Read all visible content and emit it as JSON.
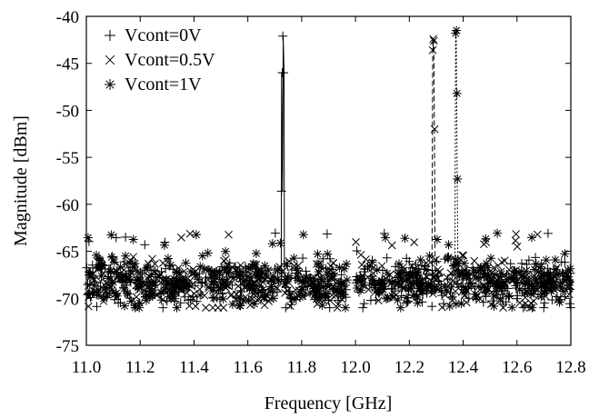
{
  "chart_data": {
    "type": "line",
    "title": "",
    "xlabel": "Frequency [GHz]",
    "ylabel": "Magnitude [dBm]",
    "xlim": [
      11.0,
      12.8
    ],
    "ylim": [
      -75,
      -40
    ],
    "x_ticks": [
      11.0,
      11.2,
      11.4,
      11.6,
      11.8,
      12.0,
      12.2,
      12.4,
      12.6,
      12.8
    ],
    "x_tick_labels": [
      "11.0",
      "11.2",
      "11.4",
      "11.6",
      "11.8",
      "12.0",
      "12.2",
      "12.4",
      "12.6",
      "12.8"
    ],
    "y_ticks": [
      -40,
      -45,
      -50,
      -55,
      -60,
      -65,
      -70,
      -75
    ],
    "y_tick_labels": [
      "-40",
      "-45",
      "-50",
      "-55",
      "-60",
      "-65",
      "-70",
      "-75"
    ],
    "grid": false,
    "legend_position": "top-left",
    "noise_floor": {
      "mean": -68.3,
      "spread_low": -71.0,
      "spread_high": -64.5,
      "gap": [
        11.97,
        12.0
      ]
    },
    "series": [
      {
        "name": "Vcont=0V",
        "marker": "plus",
        "line": "solid",
        "peak_x": 11.73,
        "peak_points": [
          [
            11.725,
            -58.6
          ],
          [
            11.728,
            -46.0
          ],
          [
            11.73,
            -42.1
          ],
          [
            11.733,
            -46.0
          ]
        ]
      },
      {
        "name": "Vcont=0.5V",
        "marker": "cross",
        "line": "dashed",
        "peak_x": 12.29,
        "peak_points": [
          [
            12.287,
            -43.6
          ],
          [
            12.289,
            -42.4
          ],
          [
            12.291,
            -42.6
          ],
          [
            12.294,
            -52.0
          ]
        ]
      },
      {
        "name": "Vcont=1V",
        "marker": "asterisk",
        "line": "dotted",
        "peak_x": 12.375,
        "peak_points": [
          [
            12.372,
            -41.8
          ],
          [
            12.375,
            -41.5
          ],
          [
            12.377,
            -48.2
          ],
          [
            12.379,
            -57.3
          ]
        ]
      }
    ]
  }
}
